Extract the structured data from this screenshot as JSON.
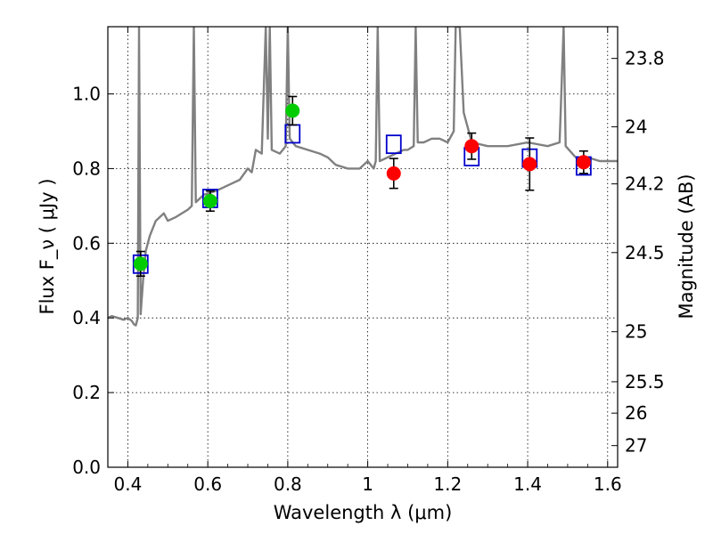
{
  "chart_data": {
    "type": "scatter",
    "title": "",
    "xlabel": "Wavelength  λ (μm)",
    "ylabel": "Flux  F_ν  ( μJy )",
    "ylabel_right": "Magnitude (AB)",
    "xlim": [
      0.35,
      1.625
    ],
    "ylim": [
      0.0,
      1.18
    ],
    "grid": true,
    "x_ticks": [
      0.4,
      0.6,
      0.8,
      1.0,
      1.2,
      1.4,
      1.6
    ],
    "x_tick_labels": [
      "0.4",
      "0.6",
      "0.8",
      "1",
      "1.2",
      "1.4",
      "1.6"
    ],
    "y_ticks": [
      0.0,
      0.2,
      0.4,
      0.6,
      0.8,
      1.0
    ],
    "y_tick_labels": [
      "0.0",
      "0.2",
      "0.4",
      "0.6",
      "0.8",
      "1.0"
    ],
    "y2_ticks": [
      {
        "flux": 1.095,
        "label": "23.8"
      },
      {
        "flux": 0.912,
        "label": "24"
      },
      {
        "flux": 0.759,
        "label": "24.2"
      },
      {
        "flux": 0.575,
        "label": "24.5"
      },
      {
        "flux": 0.363,
        "label": "25"
      },
      {
        "flux": 0.229,
        "label": "25.5"
      },
      {
        "flux": 0.145,
        "label": "26"
      },
      {
        "flux": 0.058,
        "label": "27"
      }
    ],
    "series": [
      {
        "kind": "model_spectrum",
        "color": "#808080",
        "points": [
          [
            0.35,
            0.4
          ],
          [
            0.36,
            0.405
          ],
          [
            0.375,
            0.4
          ],
          [
            0.39,
            0.395
          ],
          [
            0.4,
            0.4
          ],
          [
            0.41,
            0.392
          ],
          [
            0.415,
            0.383
          ],
          [
            0.42,
            0.38
          ],
          [
            0.425,
            0.4
          ],
          [
            0.428,
            1.18
          ],
          [
            0.432,
            0.41
          ],
          [
            0.438,
            0.5
          ],
          [
            0.445,
            0.58
          ],
          [
            0.455,
            0.62
          ],
          [
            0.47,
            0.66
          ],
          [
            0.49,
            0.68
          ],
          [
            0.5,
            0.66
          ],
          [
            0.52,
            0.67
          ],
          [
            0.55,
            0.69
          ],
          [
            0.56,
            0.7
          ],
          [
            0.565,
            1.18
          ],
          [
            0.57,
            0.71
          ],
          [
            0.59,
            0.73
          ],
          [
            0.62,
            0.74
          ],
          [
            0.64,
            0.75
          ],
          [
            0.66,
            0.76
          ],
          [
            0.68,
            0.77
          ],
          [
            0.7,
            0.8
          ],
          [
            0.71,
            0.79
          ],
          [
            0.72,
            0.85
          ],
          [
            0.735,
            0.84
          ],
          [
            0.745,
            1.18
          ],
          [
            0.75,
            0.88
          ],
          [
            0.755,
            1.18
          ],
          [
            0.76,
            0.85
          ],
          [
            0.78,
            0.84
          ],
          [
            0.795,
            0.86
          ],
          [
            0.8,
            1.18
          ],
          [
            0.805,
            0.88
          ],
          [
            0.82,
            0.86
          ],
          [
            0.85,
            0.85
          ],
          [
            0.88,
            0.84
          ],
          [
            0.9,
            0.83
          ],
          [
            0.92,
            0.81
          ],
          [
            0.95,
            0.8
          ],
          [
            0.98,
            0.8
          ],
          [
            1.0,
            0.82
          ],
          [
            1.015,
            0.8
          ],
          [
            1.02,
            0.82
          ],
          [
            1.025,
            1.18
          ],
          [
            1.03,
            0.82
          ],
          [
            1.05,
            0.83
          ],
          [
            1.07,
            0.84
          ],
          [
            1.09,
            0.85
          ],
          [
            1.1,
            0.85
          ],
          [
            1.115,
            0.86
          ],
          [
            1.12,
            1.18
          ],
          [
            1.125,
            0.87
          ],
          [
            1.14,
            0.87
          ],
          [
            1.16,
            0.88
          ],
          [
            1.18,
            0.88
          ],
          [
            1.2,
            0.87
          ],
          [
            1.215,
            0.9
          ],
          [
            1.22,
            1.18
          ],
          [
            1.23,
            1.18
          ],
          [
            1.24,
            0.95
          ],
          [
            1.26,
            0.87
          ],
          [
            1.3,
            0.86
          ],
          [
            1.35,
            0.86
          ],
          [
            1.4,
            0.87
          ],
          [
            1.45,
            0.86
          ],
          [
            1.48,
            0.87
          ],
          [
            1.49,
            1.18
          ],
          [
            1.495,
            0.86
          ],
          [
            1.52,
            0.83
          ],
          [
            1.55,
            0.83
          ],
          [
            1.58,
            0.82
          ],
          [
            1.6,
            0.82
          ],
          [
            1.625,
            0.82
          ]
        ]
      },
      {
        "kind": "model_photometry",
        "marker": "open-square",
        "color": "#0000cc",
        "x": [
          0.432,
          0.606,
          0.812,
          1.065,
          1.26,
          1.405,
          1.54
        ],
        "y": [
          0.544,
          0.72,
          0.893,
          0.865,
          0.832,
          0.828,
          0.807
        ]
      },
      {
        "kind": "observed_flux",
        "marker": "filled-circle",
        "color": "#00cc00",
        "x": [
          0.432,
          0.606,
          0.812
        ],
        "y": [
          0.545,
          0.713,
          0.955
        ],
        "yerr": [
          0.033,
          0.027,
          0.038
        ]
      },
      {
        "kind": "observed_flux",
        "marker": "filled-circle",
        "color": "#ff0000",
        "x": [
          1.065,
          1.26,
          1.405,
          1.54
        ],
        "y": [
          0.787,
          0.86,
          0.812,
          0.817
        ],
        "yerr": [
          0.04,
          0.035,
          0.07,
          0.03
        ]
      }
    ]
  }
}
